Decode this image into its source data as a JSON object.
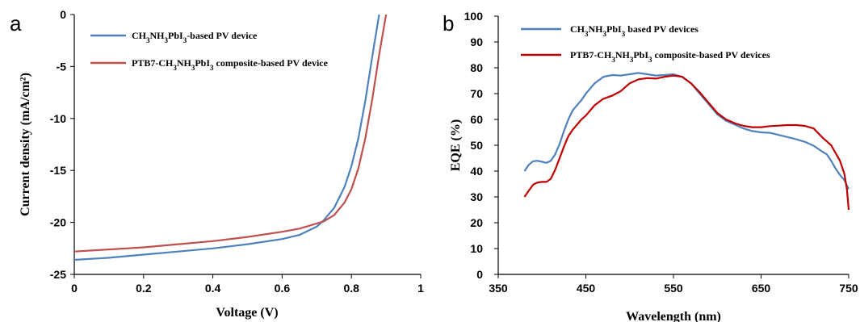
{
  "chart_data": [
    {
      "panel": "a",
      "type": "line",
      "xlabel": "Voltage (V)",
      "ylabel": "Current density (mA/cm²)",
      "xlim": [
        0,
        1
      ],
      "ylim": [
        -25,
        0
      ],
      "xticks": [
        "0",
        "0.2",
        "0.4",
        "0.6",
        "0.8",
        "1"
      ],
      "xtick_values": [
        0,
        0.2,
        0.4,
        0.6,
        0.8,
        1
      ],
      "yticks": [
        "0",
        "-5",
        "-10",
        "-15",
        "-20",
        "-25"
      ],
      "ytick_values": [
        0,
        -5,
        -10,
        -15,
        -20,
        -25
      ],
      "grid": false,
      "legend_position": "top-left",
      "series": [
        {
          "name": "CH3NH3PbI3-based PV device",
          "legend_parts": [
            [
              "CH",
              ""
            ],
            [
              "3",
              "sub"
            ],
            [
              "NH",
              ""
            ],
            [
              "3",
              "sub"
            ],
            [
              "PbI",
              ""
            ],
            [
              "3",
              "sub"
            ],
            [
              "-based PV device",
              ""
            ]
          ],
          "color": "#4f81bd",
          "x": [
            0,
            0.1,
            0.2,
            0.3,
            0.4,
            0.5,
            0.6,
            0.65,
            0.7,
            0.72,
            0.75,
            0.78,
            0.8,
            0.82,
            0.84,
            0.86,
            0.88
          ],
          "y": [
            -23.6,
            -23.4,
            -23.1,
            -22.8,
            -22.5,
            -22.1,
            -21.6,
            -21.2,
            -20.4,
            -19.8,
            -18.6,
            -16.6,
            -14.6,
            -11.9,
            -8.3,
            -4.1,
            0
          ]
        },
        {
          "name": "PTB7-CH3NH3PbI3 composite-based PV device",
          "legend_parts": [
            [
              "PTB7-CH",
              ""
            ],
            [
              "3",
              "sub"
            ],
            [
              "NH",
              ""
            ],
            [
              "3",
              "sub"
            ],
            [
              "PbI",
              ""
            ],
            [
              "3",
              "sub"
            ],
            [
              " composite-based PV device",
              ""
            ]
          ],
          "color": "#c0504d",
          "x": [
            0,
            0.1,
            0.2,
            0.3,
            0.4,
            0.5,
            0.6,
            0.65,
            0.7,
            0.72,
            0.75,
            0.78,
            0.8,
            0.82,
            0.84,
            0.86,
            0.88,
            0.9
          ],
          "y": [
            -22.8,
            -22.6,
            -22.4,
            -22.1,
            -21.8,
            -21.4,
            -20.9,
            -20.6,
            -20.1,
            -19.9,
            -19.3,
            -18.1,
            -16.8,
            -14.8,
            -11.9,
            -8.2,
            -3.9,
            0
          ]
        }
      ]
    },
    {
      "panel": "b",
      "type": "line",
      "xlabel": "Wavelength (nm)",
      "ylabel": "EQE (%)",
      "xlim": [
        350,
        750
      ],
      "ylim": [
        0,
        100
      ],
      "xticks": [
        "350",
        "450",
        "550",
        "650",
        "750"
      ],
      "xtick_values": [
        350,
        450,
        550,
        650,
        750
      ],
      "yticks": [
        "0",
        "10",
        "20",
        "30",
        "40",
        "50",
        "60",
        "70",
        "80",
        "90",
        "100"
      ],
      "ytick_values": [
        0,
        10,
        20,
        30,
        40,
        50,
        60,
        70,
        80,
        90,
        100
      ],
      "grid": false,
      "legend_position": "top-left",
      "series": [
        {
          "name": "CH3NH3PbI3 based PV devices",
          "legend_parts": [
            [
              "CH",
              ""
            ],
            [
              "3",
              "sub"
            ],
            [
              "NH",
              ""
            ],
            [
              "3",
              "sub"
            ],
            [
              "PbI",
              ""
            ],
            [
              "3",
              "sub"
            ],
            [
              " based PV devices",
              ""
            ]
          ],
          "color": "#4f81bd",
          "x": [
            380,
            385,
            390,
            395,
            400,
            405,
            410,
            415,
            420,
            425,
            430,
            435,
            440,
            445,
            450,
            460,
            470,
            480,
            490,
            500,
            510,
            520,
            530,
            540,
            550,
            560,
            570,
            580,
            590,
            600,
            610,
            620,
            630,
            640,
            650,
            660,
            670,
            680,
            690,
            700,
            710,
            720,
            725,
            730,
            735,
            740,
            745,
            750
          ],
          "y": [
            40,
            42.5,
            43.8,
            44,
            43.6,
            43.2,
            44,
            46.5,
            50.5,
            55.5,
            60,
            63.5,
            65.5,
            67.5,
            70,
            74,
            76.5,
            77.2,
            77,
            77.5,
            78,
            77.5,
            77,
            77.2,
            77.5,
            76.5,
            74,
            70,
            66,
            62,
            59.5,
            58,
            56.5,
            55.5,
            55,
            54.8,
            54,
            53.2,
            52.3,
            51.3,
            49.8,
            47.5,
            46.5,
            44,
            41,
            38.5,
            36.5,
            33
          ]
        },
        {
          "name": "PTB7-CH3NH3PbI3 composite-based PV devices",
          "legend_parts": [
            [
              "PTB7-CH",
              ""
            ],
            [
              "3",
              "sub"
            ],
            [
              "NH",
              ""
            ],
            [
              "3",
              "sub"
            ],
            [
              "PbI",
              ""
            ],
            [
              "3",
              "sub"
            ],
            [
              " composite-based PV devices",
              ""
            ]
          ],
          "color": "#c00000",
          "x": [
            380,
            385,
            390,
            395,
            400,
            405,
            410,
            415,
            420,
            425,
            430,
            435,
            440,
            445,
            450,
            460,
            470,
            480,
            490,
            500,
            510,
            520,
            530,
            540,
            550,
            560,
            570,
            580,
            590,
            600,
            610,
            620,
            630,
            640,
            650,
            660,
            670,
            680,
            690,
            700,
            710,
            720,
            725,
            730,
            735,
            740,
            745,
            748,
            750
          ],
          "y": [
            30,
            32.5,
            34.8,
            35.6,
            35.8,
            35.8,
            37,
            40.5,
            45,
            49.5,
            53.5,
            56,
            58,
            60,
            61.5,
            65.5,
            68,
            69.2,
            71,
            74,
            75.5,
            76,
            75.8,
            76.5,
            77,
            76.5,
            74,
            70.5,
            66.5,
            62.5,
            60,
            58.5,
            57.5,
            57,
            57,
            57.4,
            57.6,
            57.8,
            57.8,
            57.5,
            56.5,
            53,
            51.5,
            50,
            47,
            44,
            39,
            33,
            25
          ]
        }
      ]
    }
  ]
}
